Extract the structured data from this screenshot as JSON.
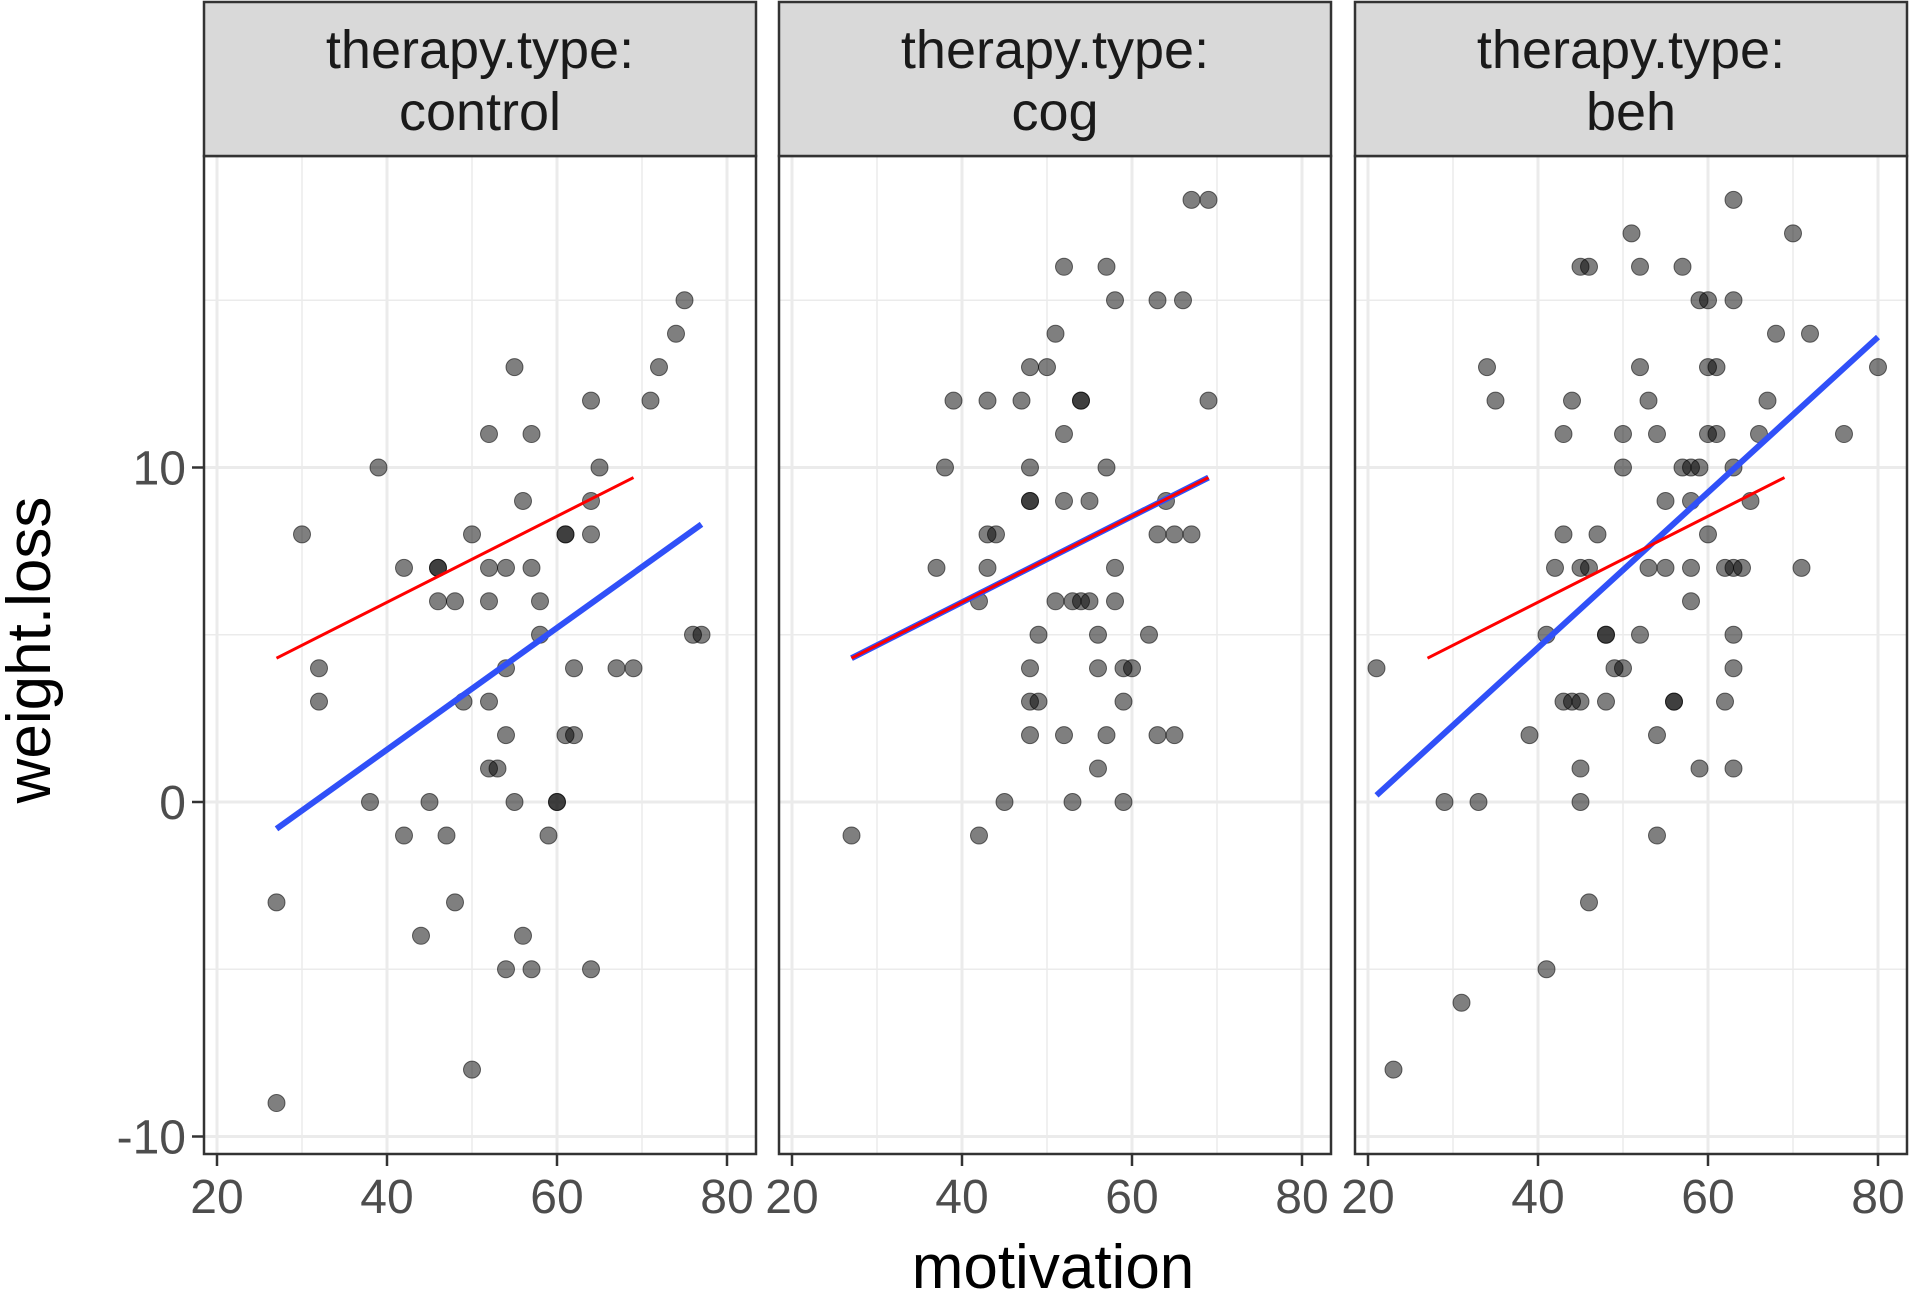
{
  "chart_data": {
    "type": "scatter",
    "facet_label": "therapy.type:",
    "xlabel": "motivation",
    "ylabel": "weight.loss",
    "xlim": [
      20,
      80
    ],
    "ylim": [
      -10,
      20
    ],
    "x_ticks": [
      "20",
      "40",
      "60",
      "80"
    ],
    "y_ticks": [
      "-10",
      "0",
      "10"
    ],
    "y_tick_values": [
      -10,
      0,
      10
    ],
    "x_tick_values": [
      20,
      40,
      60,
      80
    ],
    "grid": true,
    "colors": {
      "points": "#000000",
      "blue_line": "#3050f8",
      "red_line": "#ff0000",
      "strip_bg": "#d9d9d9",
      "grid": "#ebebeb"
    },
    "red_line": {
      "x": [
        27,
        69
      ],
      "y": [
        4.3,
        9.7
      ]
    },
    "panels": [
      {
        "label": "control",
        "blue_line": {
          "x": [
            27,
            77
          ],
          "y": [
            -0.8,
            8.3
          ]
        },
        "points": [
          [
            27,
            -9
          ],
          [
            27,
            -3
          ],
          [
            30,
            8
          ],
          [
            32,
            4
          ],
          [
            32,
            3
          ],
          [
            38,
            0
          ],
          [
            39,
            10
          ],
          [
            42,
            7
          ],
          [
            42,
            -1
          ],
          [
            44,
            -4
          ],
          [
            45,
            0
          ],
          [
            46,
            7
          ],
          [
            46,
            7
          ],
          [
            46,
            6
          ],
          [
            47,
            -1
          ],
          [
            48,
            6
          ],
          [
            48,
            -3
          ],
          [
            49,
            3
          ],
          [
            50,
            8
          ],
          [
            50,
            -8
          ],
          [
            52,
            11
          ],
          [
            52,
            7
          ],
          [
            52,
            6
          ],
          [
            52,
            3
          ],
          [
            52,
            1
          ],
          [
            53,
            1
          ],
          [
            54,
            7
          ],
          [
            54,
            4
          ],
          [
            54,
            2
          ],
          [
            54,
            -5
          ],
          [
            55,
            13
          ],
          [
            55,
            0
          ],
          [
            56,
            9
          ],
          [
            56,
            -4
          ],
          [
            57,
            11
          ],
          [
            57,
            7
          ],
          [
            57,
            -5
          ],
          [
            58,
            6
          ],
          [
            58,
            5
          ],
          [
            59,
            -1
          ],
          [
            60,
            0
          ],
          [
            60,
            0
          ],
          [
            61,
            8
          ],
          [
            61,
            8
          ],
          [
            61,
            2
          ],
          [
            62,
            4
          ],
          [
            62,
            2
          ],
          [
            64,
            12
          ],
          [
            64,
            9
          ],
          [
            64,
            8
          ],
          [
            64,
            -5
          ],
          [
            65,
            10
          ],
          [
            67,
            4
          ],
          [
            69,
            4
          ],
          [
            71,
            12
          ],
          [
            72,
            13
          ],
          [
            74,
            14
          ],
          [
            75,
            15
          ],
          [
            76,
            5
          ],
          [
            77,
            5
          ]
        ]
      },
      {
        "label": "cog",
        "blue_line": {
          "x": [
            27,
            69
          ],
          "y": [
            4.3,
            9.7
          ]
        },
        "points": [
          [
            27,
            -1
          ],
          [
            37,
            7
          ],
          [
            38,
            10
          ],
          [
            39,
            12
          ],
          [
            42,
            -1
          ],
          [
            42,
            6
          ],
          [
            43,
            12
          ],
          [
            43,
            8
          ],
          [
            43,
            7
          ],
          [
            44,
            8
          ],
          [
            45,
            0
          ],
          [
            47,
            12
          ],
          [
            48,
            13
          ],
          [
            48,
            10
          ],
          [
            48,
            9
          ],
          [
            48,
            9
          ],
          [
            48,
            4
          ],
          [
            48,
            3
          ],
          [
            48,
            2
          ],
          [
            49,
            3
          ],
          [
            49,
            5
          ],
          [
            50,
            13
          ],
          [
            51,
            14
          ],
          [
            51,
            6
          ],
          [
            52,
            16
          ],
          [
            52,
            11
          ],
          [
            52,
            9
          ],
          [
            52,
            2
          ],
          [
            53,
            6
          ],
          [
            53,
            0
          ],
          [
            54,
            12
          ],
          [
            54,
            12
          ],
          [
            54,
            6
          ],
          [
            55,
            9
          ],
          [
            55,
            6
          ],
          [
            56,
            5
          ],
          [
            56,
            4
          ],
          [
            56,
            1
          ],
          [
            57,
            16
          ],
          [
            57,
            10
          ],
          [
            57,
            2
          ],
          [
            58,
            15
          ],
          [
            58,
            7
          ],
          [
            58,
            6
          ],
          [
            59,
            4
          ],
          [
            59,
            3
          ],
          [
            59,
            0
          ],
          [
            60,
            4
          ],
          [
            62,
            5
          ],
          [
            63,
            15
          ],
          [
            63,
            8
          ],
          [
            63,
            2
          ],
          [
            64,
            9
          ],
          [
            65,
            8
          ],
          [
            65,
            2
          ],
          [
            66,
            15
          ],
          [
            67,
            18
          ],
          [
            67,
            8
          ],
          [
            69,
            18
          ],
          [
            69,
            12
          ]
        ]
      },
      {
        "label": "beh",
        "blue_line": {
          "x": [
            21,
            80
          ],
          "y": [
            0.2,
            13.9
          ]
        },
        "points": [
          [
            21,
            4
          ],
          [
            23,
            -8
          ],
          [
            29,
            0
          ],
          [
            31,
            -6
          ],
          [
            33,
            0
          ],
          [
            34,
            13
          ],
          [
            35,
            12
          ],
          [
            39,
            2
          ],
          [
            41,
            -5
          ],
          [
            41,
            5
          ],
          [
            42,
            7
          ],
          [
            43,
            11
          ],
          [
            43,
            8
          ],
          [
            43,
            3
          ],
          [
            44,
            12
          ],
          [
            44,
            3
          ],
          [
            45,
            16
          ],
          [
            45,
            7
          ],
          [
            45,
            3
          ],
          [
            45,
            1
          ],
          [
            45,
            0
          ],
          [
            46,
            16
          ],
          [
            46,
            7
          ],
          [
            46,
            -3
          ],
          [
            47,
            8
          ],
          [
            48,
            5
          ],
          [
            48,
            5
          ],
          [
            48,
            3
          ],
          [
            49,
            4
          ],
          [
            50,
            11
          ],
          [
            50,
            10
          ],
          [
            50,
            4
          ],
          [
            51,
            17
          ],
          [
            52,
            16
          ],
          [
            52,
            13
          ],
          [
            52,
            5
          ],
          [
            53,
            12
          ],
          [
            53,
            7
          ],
          [
            54,
            11
          ],
          [
            54,
            2
          ],
          [
            54,
            -1
          ],
          [
            55,
            9
          ],
          [
            55,
            7
          ],
          [
            56,
            3
          ],
          [
            56,
            3
          ],
          [
            57,
            16
          ],
          [
            57,
            10
          ],
          [
            58,
            10
          ],
          [
            58,
            9
          ],
          [
            58,
            7
          ],
          [
            58,
            6
          ],
          [
            59,
            15
          ],
          [
            59,
            10
          ],
          [
            59,
            1
          ],
          [
            60,
            15
          ],
          [
            60,
            13
          ],
          [
            60,
            11
          ],
          [
            60,
            8
          ],
          [
            61,
            13
          ],
          [
            61,
            11
          ],
          [
            62,
            7
          ],
          [
            62,
            3
          ],
          [
            63,
            18
          ],
          [
            63,
            15
          ],
          [
            63,
            10
          ],
          [
            63,
            7
          ],
          [
            63,
            5
          ],
          [
            63,
            4
          ],
          [
            63,
            1
          ],
          [
            64,
            7
          ],
          [
            65,
            9
          ],
          [
            66,
            11
          ],
          [
            67,
            12
          ],
          [
            68,
            14
          ],
          [
            70,
            17
          ],
          [
            71,
            7
          ],
          [
            72,
            14
          ],
          [
            76,
            11
          ],
          [
            80,
            13
          ]
        ]
      }
    ]
  }
}
